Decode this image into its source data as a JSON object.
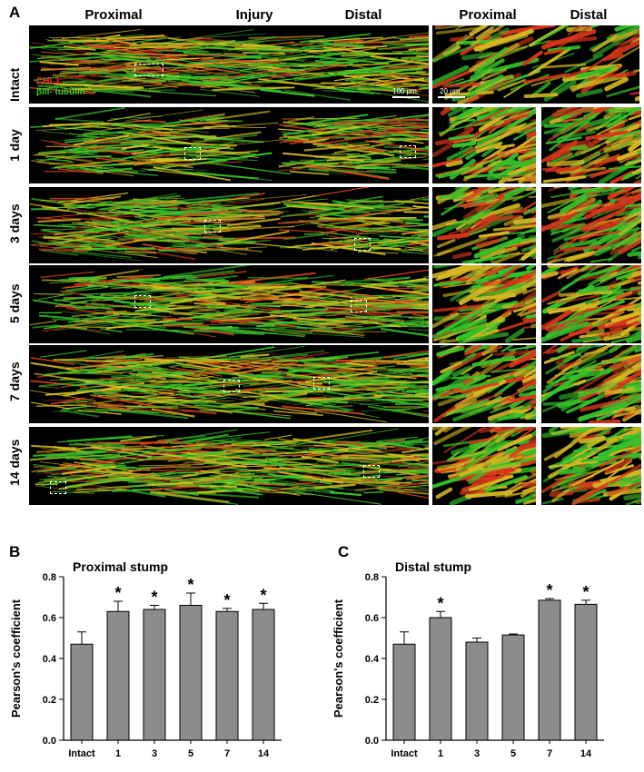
{
  "figure": {
    "panel_a_letter": "A",
    "panel_b_letter": "B",
    "panel_c_letter": "C",
    "col_headers": [
      "Proximal",
      "Injury",
      "Distal",
      "Proximal",
      "Distal"
    ],
    "row_labels": [
      "Intact",
      "1 day",
      "3 days",
      "5 days",
      "7 days",
      "14 days"
    ],
    "legend_red": "CHL1",
    "legend_green": "βIII- tubulin",
    "scale_100": "100 μm",
    "scale_20": "20 μm"
  },
  "colors": {
    "bar": "#8c8c8c",
    "red": "#ff2a2a",
    "green": "#30d030"
  },
  "chart_data": [
    {
      "type": "bar",
      "title": "Proximal stump",
      "ylabel": "Pearson's coefficient",
      "xlabel": "",
      "categories": [
        "Intact",
        "1",
        "3",
        "5",
        "7",
        "14"
      ],
      "values": [
        0.47,
        0.63,
        0.64,
        0.66,
        0.63,
        0.64
      ],
      "errors": [
        0.06,
        0.05,
        0.02,
        0.06,
        0.015,
        0.03
      ],
      "significance": [
        "",
        "*",
        "*",
        "*",
        "*",
        "*"
      ],
      "ylim": [
        0.0,
        0.8
      ],
      "yticks": [
        "0.0",
        "0.2",
        "0.4",
        "0.6",
        "0.8"
      ],
      "grid": false
    },
    {
      "type": "bar",
      "title": "Distal stump",
      "ylabel": "Pearson's coefficient",
      "xlabel": "",
      "categories": [
        "Intact",
        "1",
        "3",
        "5",
        "7",
        "14"
      ],
      "values": [
        0.47,
        0.6,
        0.48,
        0.515,
        0.685,
        0.665
      ],
      "errors": [
        0.06,
        0.03,
        0.02,
        0.005,
        0.008,
        0.02
      ],
      "significance": [
        "",
        "*",
        "",
        "",
        "*",
        "*"
      ],
      "ylim": [
        0.0,
        0.8
      ],
      "yticks": [
        "0.0",
        "0.2",
        "0.4",
        "0.6",
        "0.8"
      ],
      "grid": false
    }
  ]
}
